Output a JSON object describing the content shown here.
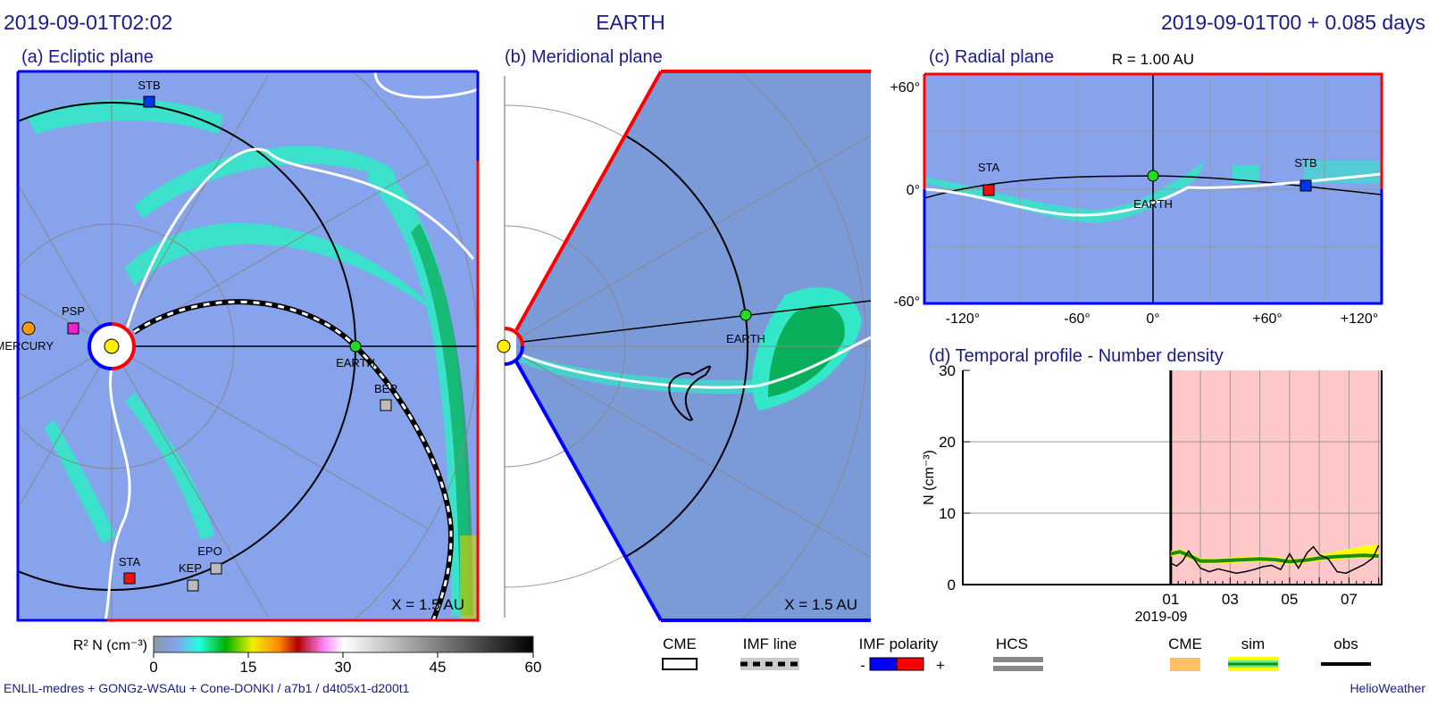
{
  "header": {
    "left_time": "2019-09-01T02:02",
    "center_title": "EARTH",
    "right_time": "2019-09-01T00 +  0.085 days"
  },
  "panel_a": {
    "title": "(a) Ecliptic plane",
    "scale_label": "X = 1.5 AU",
    "bodies": [
      "STB",
      "PSP",
      "MERCURY",
      "EARTH",
      "BEP",
      "STA",
      "EPO",
      "KEP"
    ]
  },
  "panel_b": {
    "title": "(b) Meridional plane",
    "scale_label": "X = 1.5 AU",
    "bodies": [
      "EARTH"
    ]
  },
  "panel_c": {
    "title": "(c) Radial plane",
    "radius_label": "R = 1.00 AU",
    "y_ticks": [
      "+60°",
      "0°",
      "-60°"
    ],
    "x_ticks": [
      "-120°",
      "-60°",
      "0°",
      "+60°",
      "+120°"
    ],
    "bodies": [
      "STA",
      "EARTH",
      "STB"
    ]
  },
  "colorbar": {
    "label": "R² N (cm⁻³)",
    "ticks": [
      "0",
      "15",
      "30",
      "45",
      "60"
    ],
    "range": [
      0,
      60
    ]
  },
  "legend": {
    "cme_outline": "CME",
    "imf_line": "IMF line",
    "imf_polarity": "IMF polarity",
    "minus": "-",
    "plus": "+",
    "hcs": "HCS",
    "cme_fill": "CME",
    "sim": "sim",
    "obs": "obs"
  },
  "footer": {
    "credits": "ENLIL-medres + GONGz-WSAtu + Cone-DONKI / a7b1 / d4t05x1-d200t1",
    "brand": "HelioWeather"
  },
  "colors": {
    "title": "#1a1a8c",
    "positive": "#ff0000",
    "negative": "#0000ff",
    "cme_period": "#ffc8c8",
    "sim": "#1a8c1a",
    "obs": "#000000"
  },
  "chart_data": {
    "type": "line",
    "title": "(d) Temporal profile - Number density",
    "ylabel": "N (cm⁻³)",
    "ylim": [
      0,
      30
    ],
    "y_ticks": [
      "0",
      "10",
      "20",
      "30"
    ],
    "x_ticks": [
      "01",
      "03",
      "05",
      "07"
    ],
    "x_sublabel": "2019-09",
    "xlim_days": [
      -6,
      8.1
    ],
    "highlight_days": [
      1,
      8.1
    ],
    "series": [
      {
        "name": "sim",
        "x": [
          1.0,
          1.3,
          1.6,
          2.0,
          2.5,
          3.0,
          3.5,
          4.0,
          4.5,
          5.0,
          5.5,
          6.0,
          6.5,
          7.0,
          7.5,
          8.0
        ],
        "values": [
          4.3,
          4.6,
          4.1,
          3.3,
          3.3,
          3.4,
          3.5,
          3.6,
          3.5,
          3.2,
          3.4,
          3.7,
          3.9,
          4.0,
          4.1,
          4.0
        ]
      },
      {
        "name": "obs",
        "x": [
          1.0,
          1.2,
          1.4,
          1.6,
          1.8,
          2.0,
          2.3,
          2.6,
          2.9,
          3.2,
          3.5,
          3.8,
          4.1,
          4.4,
          4.7,
          5.0,
          5.3,
          5.6,
          5.8,
          6.0,
          6.3,
          6.6,
          6.9,
          7.2,
          7.5,
          7.8,
          8.0
        ],
        "values": [
          3.0,
          2.6,
          3.3,
          4.7,
          3.5,
          2.3,
          1.8,
          2.2,
          1.9,
          1.6,
          1.8,
          2.1,
          2.5,
          2.7,
          2.1,
          4.3,
          2.3,
          4.5,
          5.3,
          4.2,
          3.6,
          1.8,
          1.6,
          2.2,
          2.8,
          3.7,
          5.5
        ]
      }
    ]
  }
}
